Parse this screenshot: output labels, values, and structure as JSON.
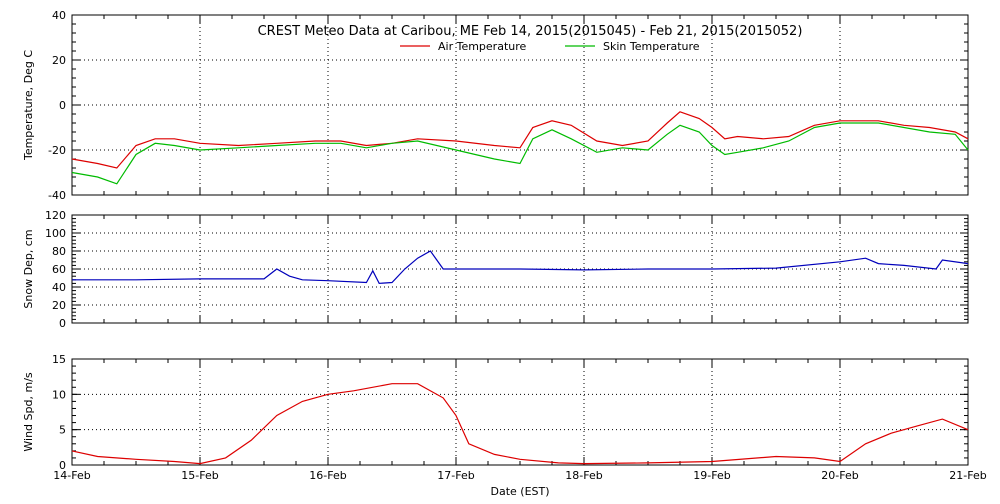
{
  "title": "CREST Meteo Data at Caribou, ME   Feb 14, 2015(2015045) - Feb 21, 2015(2015052)",
  "xlabel": "Date (EST)",
  "x_ticks": [
    "14-Feb",
    "15-Feb",
    "16-Feb",
    "17-Feb",
    "18-Feb",
    "19-Feb",
    "20-Feb",
    "21-Feb"
  ],
  "colors": {
    "red": "#dd0000",
    "green": "#00bb00",
    "blue": "#0000bb",
    "grid": "#000000"
  },
  "chart_data": [
    {
      "type": "line",
      "ylabel": "Temperature, Deg C",
      "ylim": [
        -40,
        40
      ],
      "y_ticks": [
        40,
        20,
        0,
        -20,
        -40
      ],
      "xlim": [
        0,
        7
      ],
      "grid": true,
      "legend_placement": "top-center",
      "series": [
        {
          "name": "Air Temperature",
          "color": "red",
          "x": [
            0,
            0.2,
            0.35,
            0.5,
            0.65,
            0.8,
            1.0,
            1.3,
            1.6,
            1.9,
            2.1,
            2.3,
            2.5,
            2.7,
            3.0,
            3.3,
            3.5,
            3.6,
            3.75,
            3.9,
            4.1,
            4.3,
            4.5,
            4.65,
            4.75,
            4.9,
            5.0,
            5.1,
            5.2,
            5.4,
            5.6,
            5.8,
            6.0,
            6.3,
            6.5,
            6.7,
            6.9,
            7.0
          ],
          "y": [
            -24,
            -26,
            -28,
            -18,
            -15,
            -15,
            -17,
            -18,
            -17,
            -16,
            -16,
            -18,
            -17,
            -15,
            -16,
            -18,
            -19,
            -10,
            -7,
            -9,
            -16,
            -18,
            -16,
            -8,
            -3,
            -6,
            -10,
            -15,
            -14,
            -15,
            -14,
            -9,
            -7,
            -7,
            -9,
            -10,
            -12,
            -15
          ]
        },
        {
          "name": "Skin Temperature",
          "color": "green",
          "x": [
            0,
            0.2,
            0.35,
            0.5,
            0.65,
            0.8,
            1.0,
            1.3,
            1.6,
            1.9,
            2.1,
            2.3,
            2.5,
            2.7,
            3.0,
            3.3,
            3.5,
            3.6,
            3.75,
            3.9,
            4.1,
            4.3,
            4.5,
            4.65,
            4.75,
            4.9,
            5.0,
            5.1,
            5.2,
            5.4,
            5.6,
            5.8,
            6.0,
            6.3,
            6.5,
            6.7,
            6.9,
            7.0
          ],
          "y": [
            -30,
            -32,
            -35,
            -22,
            -17,
            -18,
            -20,
            -19,
            -18,
            -17,
            -17,
            -19,
            -17,
            -16,
            -20,
            -24,
            -26,
            -15,
            -11,
            -15,
            -21,
            -19,
            -20,
            -13,
            -9,
            -12,
            -18,
            -22,
            -21,
            -19,
            -16,
            -10,
            -8,
            -8,
            -10,
            -12,
            -13,
            -20
          ]
        }
      ]
    },
    {
      "type": "line",
      "ylabel": "Snow Dep, cm",
      "ylim": [
        0,
        120
      ],
      "y_ticks": [
        120,
        100,
        80,
        60,
        40,
        20,
        0
      ],
      "xlim": [
        0,
        7
      ],
      "grid": true,
      "series": [
        {
          "color": "blue",
          "x": [
            0,
            0.5,
            1.0,
            1.5,
            1.6,
            1.7,
            1.8,
            2.0,
            2.3,
            2.35,
            2.4,
            2.5,
            2.6,
            2.7,
            2.8,
            2.85,
            2.9,
            3.0,
            3.5,
            4.0,
            4.5,
            5.0,
            5.5,
            6.0,
            6.2,
            6.3,
            6.5,
            6.75,
            6.8,
            7.0
          ],
          "y": [
            48,
            48,
            49,
            49,
            60,
            52,
            48,
            47,
            45,
            58,
            44,
            45,
            60,
            72,
            80,
            70,
            60,
            60,
            60,
            59,
            60,
            60,
            61,
            68,
            72,
            66,
            64,
            60,
            70,
            66
          ]
        }
      ]
    },
    {
      "type": "line",
      "ylabel": "Wind Spd, m/s",
      "ylim": [
        0,
        15
      ],
      "y_ticks": [
        15,
        10,
        5,
        0
      ],
      "xlim": [
        0,
        7
      ],
      "grid": true,
      "series": [
        {
          "color": "red",
          "x": [
            0,
            0.2,
            0.5,
            0.8,
            1.0,
            1.2,
            1.4,
            1.6,
            1.8,
            2.0,
            2.2,
            2.5,
            2.7,
            2.9,
            3.0,
            3.1,
            3.3,
            3.5,
            3.8,
            4.0,
            4.5,
            5.0,
            5.5,
            5.8,
            6.0,
            6.2,
            6.4,
            6.6,
            6.8,
            7.0
          ],
          "y": [
            2,
            1.2,
            0.8,
            0.5,
            0.2,
            1,
            3.5,
            7,
            9,
            10,
            10.5,
            11.5,
            11.5,
            9.5,
            7,
            3,
            1.5,
            0.8,
            0.3,
            0.2,
            0.3,
            0.5,
            1.2,
            1,
            0.5,
            3,
            4.5,
            5.5,
            6.5,
            5
          ]
        }
      ]
    }
  ]
}
